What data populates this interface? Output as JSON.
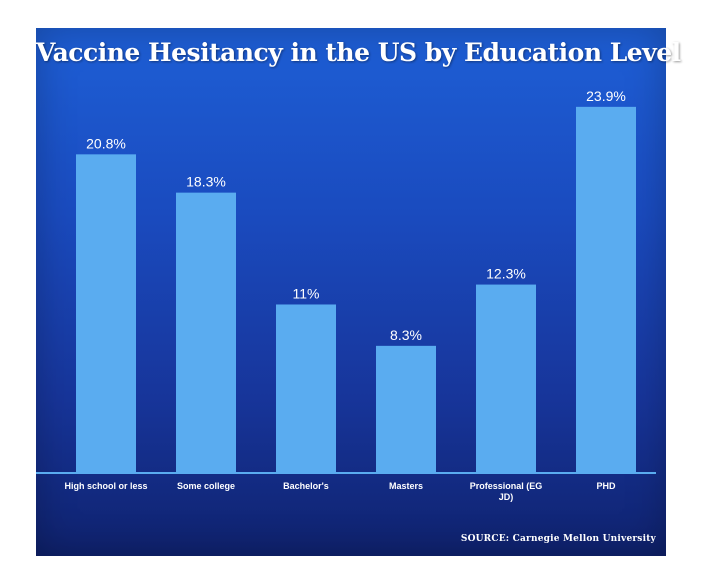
{
  "chart_data": {
    "type": "bar",
    "title": "Vaccine Hesitancy in the US by Education Level",
    "categories": [
      [
        "High school or less"
      ],
      [
        "Some college"
      ],
      [
        "Bachelor's"
      ],
      [
        "Masters"
      ],
      [
        "Professional (EG",
        "JD)"
      ],
      [
        "PHD"
      ]
    ],
    "values": [
      20.8,
      18.3,
      11,
      8.3,
      12.3,
      23.9
    ],
    "value_labels": [
      "20.8%",
      "18.3%",
      "11%",
      "8.3%",
      "12.3%",
      "23.9%"
    ],
    "ylim": [
      0,
      25
    ],
    "grid": false,
    "bar_color": "#5aacf0",
    "axis_color": "#5aacf0",
    "source": "SOURCE: Carnegie Mellon University"
  }
}
